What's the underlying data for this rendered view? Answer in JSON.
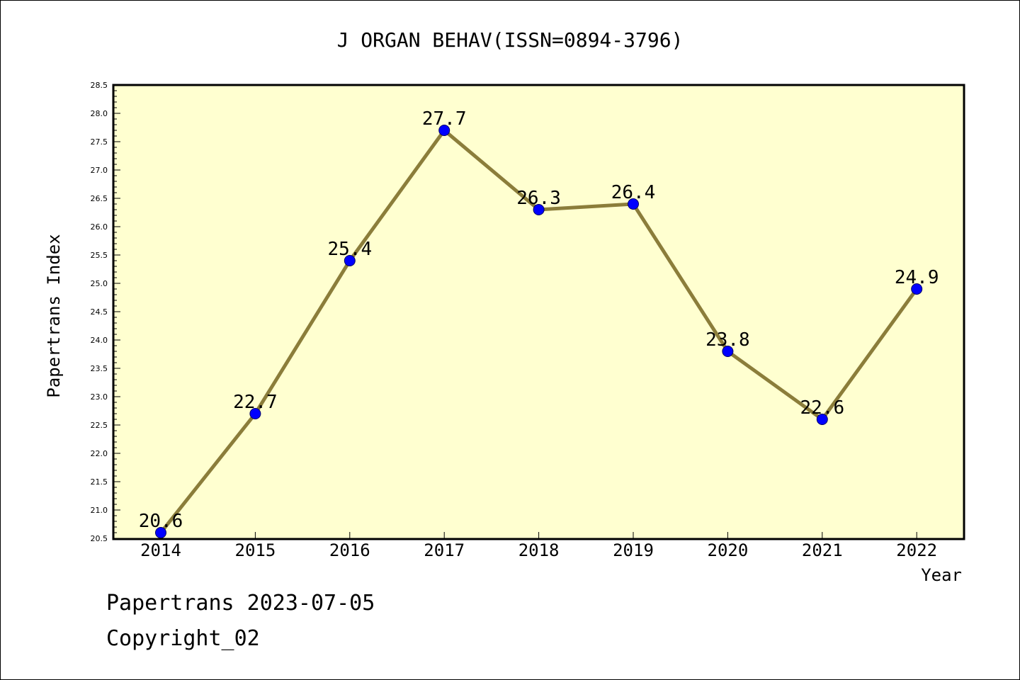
{
  "chart_data": {
    "type": "line",
    "title": "J ORGAN BEHAV(ISSN=0894-3796)",
    "xlabel": "Year",
    "ylabel": "Papertrans Index",
    "categories": [
      "2014",
      "2015",
      "2016",
      "2017",
      "2018",
      "2019",
      "2020",
      "2021",
      "2022"
    ],
    "series": [
      {
        "values": [
          20.6,
          22.7,
          25.4,
          27.7,
          26.3,
          26.4,
          23.8,
          22.6,
          24.9
        ],
        "data_labels": [
          "20.6",
          "22.7",
          "25.4",
          "27.7",
          "26.3",
          "26.4",
          "23.8",
          "22.6",
          "24.9"
        ]
      }
    ],
    "ylim": [
      20.5,
      28.5
    ],
    "yticks": [
      "20.5",
      "21.0",
      "21.5",
      "22.0",
      "22.5",
      "23.0",
      "23.5",
      "24.0",
      "24.5",
      "25.0",
      "25.5",
      "26.0",
      "26.5",
      "27.0",
      "27.5",
      "28.0",
      "28.5"
    ],
    "grid": false,
    "colors": {
      "plot_background": "#ffffd0",
      "line": "#8b7d3a",
      "marker": "#0000ff",
      "axes": "#000000"
    }
  },
  "footer": {
    "line1": "Papertrans 2023-07-05",
    "line2": "Copyright_02"
  }
}
